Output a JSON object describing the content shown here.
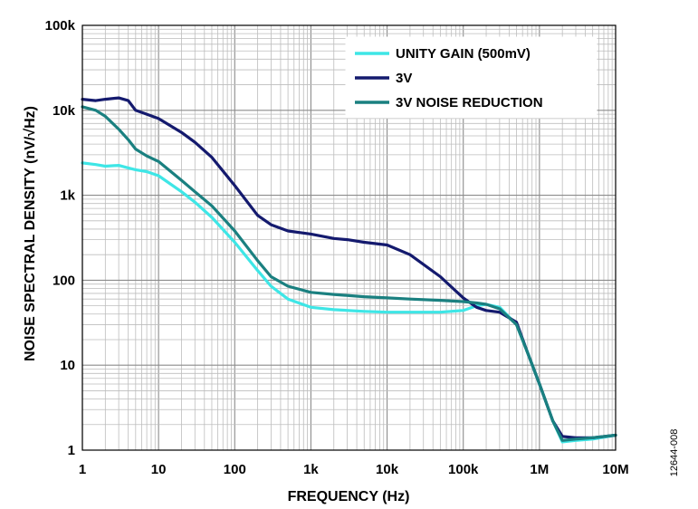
{
  "figure_id": "12644-008",
  "chart_data": {
    "type": "line",
    "xlabel": "FREQUENCY (Hz)",
    "ylabel": "NOISE SPECTRAL DENSITY (nV/√Hz)",
    "x_scale": "log",
    "y_scale": "log",
    "xlim": [
      1,
      10000000
    ],
    "ylim": [
      1,
      100000
    ],
    "x_ticks": [
      {
        "value": 1,
        "label": "1"
      },
      {
        "value": 10,
        "label": "10"
      },
      {
        "value": 100,
        "label": "100"
      },
      {
        "value": 1000,
        "label": "1k"
      },
      {
        "value": 10000,
        "label": "10k"
      },
      {
        "value": 100000,
        "label": "100k"
      },
      {
        "value": 1000000,
        "label": "1M"
      },
      {
        "value": 10000000,
        "label": "10M"
      }
    ],
    "y_ticks": [
      {
        "value": 1,
        "label": "1"
      },
      {
        "value": 10,
        "label": "10"
      },
      {
        "value": 100,
        "label": "100"
      },
      {
        "value": 1000,
        "label": "1k"
      },
      {
        "value": 10000,
        "label": "10k"
      },
      {
        "value": 100000,
        "label": "100k"
      }
    ],
    "grid": true,
    "legend_position": "top-right",
    "series": [
      {
        "name": "UNITY GAIN (500mV)",
        "color": "#3ee6e6",
        "x": [
          1,
          1.5,
          2,
          3,
          4,
          5,
          7,
          10,
          20,
          30,
          50,
          100,
          200,
          300,
          500,
          1000,
          2000,
          5000,
          10000,
          20000,
          50000,
          100000,
          150000,
          200000,
          300000,
          500000,
          700000,
          1000000,
          1500000,
          2000000,
          3000000,
          5000000,
          10000000
        ],
        "y": [
          2400,
          2300,
          2200,
          2250,
          2100,
          2000,
          1900,
          1700,
          1100,
          830,
          550,
          280,
          130,
          85,
          60,
          48,
          45,
          43,
          42,
          42,
          42,
          44,
          50,
          52,
          48,
          30,
          14,
          6,
          2.2,
          1.25,
          1.3,
          1.35,
          1.5
        ]
      },
      {
        "name": "3V",
        "color": "#141a6e",
        "x": [
          1,
          1.5,
          2,
          3,
          4,
          5,
          7,
          10,
          20,
          30,
          50,
          100,
          200,
          300,
          500,
          1000,
          2000,
          3000,
          5000,
          10000,
          20000,
          50000,
          100000,
          150000,
          200000,
          300000,
          500000,
          700000,
          1000000,
          1500000,
          2000000,
          3000000,
          5000000,
          10000000
        ],
        "y": [
          13500,
          13000,
          13500,
          14000,
          13000,
          10000,
          9000,
          8000,
          5500,
          4200,
          2800,
          1300,
          580,
          450,
          380,
          350,
          310,
          300,
          280,
          260,
          200,
          110,
          62,
          48,
          44,
          42,
          32,
          14,
          6,
          2.2,
          1.45,
          1.4,
          1.4,
          1.5
        ]
      },
      {
        "name": "3V NOISE REDUCTION",
        "color": "#1a8080",
        "x": [
          1,
          1.5,
          2,
          3,
          4,
          5,
          7,
          10,
          20,
          30,
          50,
          100,
          200,
          300,
          500,
          1000,
          2000,
          5000,
          10000,
          20000,
          50000,
          100000,
          150000,
          200000,
          300000,
          500000,
          700000,
          1000000,
          1500000,
          2000000,
          3000000,
          5000000,
          10000000
        ],
        "y": [
          11000,
          10000,
          8500,
          6000,
          4500,
          3500,
          2900,
          2500,
          1500,
          1100,
          750,
          380,
          170,
          110,
          85,
          72,
          68,
          64,
          62,
          60,
          58,
          56,
          54,
          52,
          46,
          30,
          14,
          6,
          2.2,
          1.3,
          1.35,
          1.4,
          1.5
        ]
      }
    ]
  }
}
